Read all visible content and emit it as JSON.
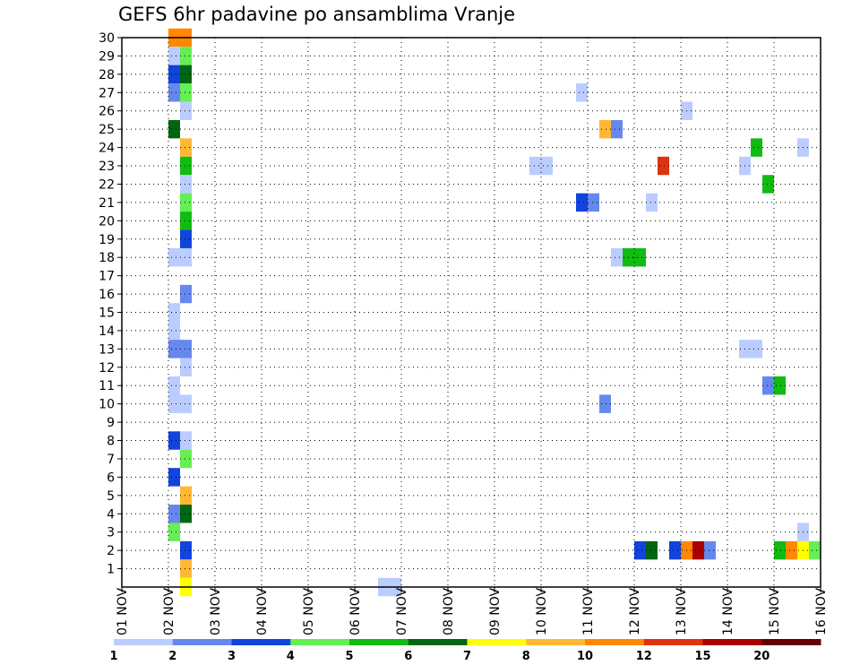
{
  "chart_data": {
    "type": "heatmap",
    "title": "GEFS 6hr padavine po ansamblima Vranje",
    "x_start": "2019-11-01",
    "x_end": "2019-11-16",
    "x_tick_labels": [
      "01 NOV",
      "02 NOV",
      "03 NOV",
      "04 NOV",
      "05 NOV",
      "06 NOV",
      "07 NOV",
      "08 NOV",
      "09 NOV",
      "10 NOV",
      "11 NOV",
      "12 NOV",
      "13 NOV",
      "14 NOV",
      "15 NOV",
      "16 NOV"
    ],
    "y_tick_labels": [
      "1",
      "2",
      "3",
      "4",
      "5",
      "6",
      "7",
      "8",
      "9",
      "10",
      "11",
      "12",
      "13",
      "14",
      "15",
      "16",
      "17",
      "18",
      "19",
      "20",
      "21",
      "22",
      "23",
      "24",
      "25",
      "26",
      "27",
      "28",
      "29",
      "30"
    ],
    "ylim": [
      0,
      30
    ],
    "grid": true,
    "legend_position": "bottom",
    "color_scale": {
      "colors": [
        "#bbccff",
        "#6688ee",
        "#1144dd",
        "#66ee55",
        "#11bb11",
        "#006611",
        "#ffff00",
        "#ffb833",
        "#ff8800",
        "#dd3311",
        "#aa0000",
        "#660000"
      ],
      "labels": [
        "1",
        "2",
        "3",
        "4",
        "5",
        "6",
        "7",
        "8",
        "10",
        "12",
        "15",
        "20"
      ]
    },
    "cells": [
      [
        "02 NOV 00Z",
        30,
        "#ff8800"
      ],
      [
        "02 NOV 06Z",
        30,
        "#ff8800"
      ],
      [
        "02 NOV 00Z",
        29,
        "#bbccff"
      ],
      [
        "02 NOV 06Z",
        29,
        "#66ee55"
      ],
      [
        "02 NOV 00Z",
        28,
        "#1144dd"
      ],
      [
        "02 NOV 06Z",
        28,
        "#006611"
      ],
      [
        "02 NOV 00Z",
        27,
        "#6688ee"
      ],
      [
        "02 NOV 06Z",
        27,
        "#66ee55"
      ],
      [
        "02 NOV 06Z",
        26,
        "#bbccff"
      ],
      [
        "02 NOV 00Z",
        25,
        "#006611"
      ],
      [
        "02 NOV 06Z",
        24,
        "#ffb833"
      ],
      [
        "02 NOV 06Z",
        23,
        "#11bb11"
      ],
      [
        "02 NOV 06Z",
        22,
        "#bbccff"
      ],
      [
        "02 NOV 06Z",
        21,
        "#66ee55"
      ],
      [
        "02 NOV 06Z",
        20,
        "#11bb11"
      ],
      [
        "02 NOV 06Z",
        19,
        "#1144dd"
      ],
      [
        "02 NOV 00Z",
        18,
        "#bbccff"
      ],
      [
        "02 NOV 06Z",
        18,
        "#bbccff"
      ],
      [
        "02 NOV 06Z",
        16,
        "#6688ee"
      ],
      [
        "02 NOV 00Z",
        15,
        "#bbccff"
      ],
      [
        "02 NOV 00Z",
        14,
        "#bbccff"
      ],
      [
        "02 NOV 00Z",
        13,
        "#6688ee"
      ],
      [
        "02 NOV 06Z",
        13,
        "#6688ee"
      ],
      [
        "02 NOV 06Z",
        12,
        "#bbccff"
      ],
      [
        "02 NOV 00Z",
        11,
        "#bbccff"
      ],
      [
        "02 NOV 00Z",
        10,
        "#bbccff"
      ],
      [
        "02 NOV 06Z",
        10,
        "#bbccff"
      ],
      [
        "02 NOV 00Z",
        8,
        "#1144dd"
      ],
      [
        "02 NOV 06Z",
        8,
        "#bbccff"
      ],
      [
        "02 NOV 06Z",
        7,
        "#66ee55"
      ],
      [
        "02 NOV 00Z",
        6,
        "#1144dd"
      ],
      [
        "02 NOV 06Z",
        5,
        "#ffb833"
      ],
      [
        "02 NOV 00Z",
        4,
        "#6688ee"
      ],
      [
        "02 NOV 06Z",
        4,
        "#006611"
      ],
      [
        "02 NOV 00Z",
        3,
        "#66ee55"
      ],
      [
        "02 NOV 06Z",
        2,
        "#1144dd"
      ],
      [
        "02 NOV 06Z",
        1,
        "#ffb833"
      ],
      [
        "02 NOV 06Z",
        0,
        "#ffff00"
      ],
      [
        "06 NOV 12Z",
        0,
        "#bbccff"
      ],
      [
        "06 NOV 18Z",
        0,
        "#bbccff"
      ],
      [
        "09 NOV 18Z",
        23,
        "#bbccff"
      ],
      [
        "10 NOV 00Z",
        23,
        "#bbccff"
      ],
      [
        "10 NOV 18Z",
        27,
        "#bbccff"
      ],
      [
        "10 NOV 18Z",
        21,
        "#1144dd"
      ],
      [
        "11 NOV 00Z",
        21,
        "#6688ee"
      ],
      [
        "11 NOV 06Z",
        25,
        "#ffb833"
      ],
      [
        "11 NOV 12Z",
        25,
        "#6688ee"
      ],
      [
        "11 NOV 06Z",
        10,
        "#6688ee"
      ],
      [
        "11 NOV 12Z",
        18,
        "#bbccff"
      ],
      [
        "11 NOV 18Z",
        18,
        "#11bb11"
      ],
      [
        "12 NOV 00Z",
        18,
        "#11bb11"
      ],
      [
        "12 NOV 00Z",
        2,
        "#1144dd"
      ],
      [
        "12 NOV 06Z",
        2,
        "#006611"
      ],
      [
        "12 NOV 06Z",
        21,
        "#bbccff"
      ],
      [
        "12 NOV 12Z",
        23,
        "#dd3311"
      ],
      [
        "12 NOV 18Z",
        2,
        "#1144dd"
      ],
      [
        "13 NOV 00Z",
        2,
        "#ff8800"
      ],
      [
        "13 NOV 06Z",
        2,
        "#aa0000"
      ],
      [
        "13 NOV 12Z",
        2,
        "#6688ee"
      ],
      [
        "13 NOV 00Z",
        26,
        "#bbccff"
      ],
      [
        "14 NOV 06Z",
        23,
        "#bbccff"
      ],
      [
        "14 NOV 06Z",
        13,
        "#bbccff"
      ],
      [
        "14 NOV 12Z",
        13,
        "#bbccff"
      ],
      [
        "14 NOV 12Z",
        24,
        "#11bb11"
      ],
      [
        "14 NOV 18Z",
        11,
        "#6688ee"
      ],
      [
        "15 NOV 00Z",
        11,
        "#11bb11"
      ],
      [
        "14 NOV 18Z",
        22,
        "#11bb11"
      ],
      [
        "15 NOV 00Z",
        2,
        "#11bb11"
      ],
      [
        "15 NOV 06Z",
        2,
        "#ff8800"
      ],
      [
        "15 NOV 12Z",
        2,
        "#ffff00"
      ],
      [
        "15 NOV 18Z",
        2,
        "#66ee55"
      ],
      [
        "15 NOV 12Z",
        3,
        "#bbccff"
      ],
      [
        "15 NOV 12Z",
        24,
        "#bbccff"
      ]
    ]
  }
}
